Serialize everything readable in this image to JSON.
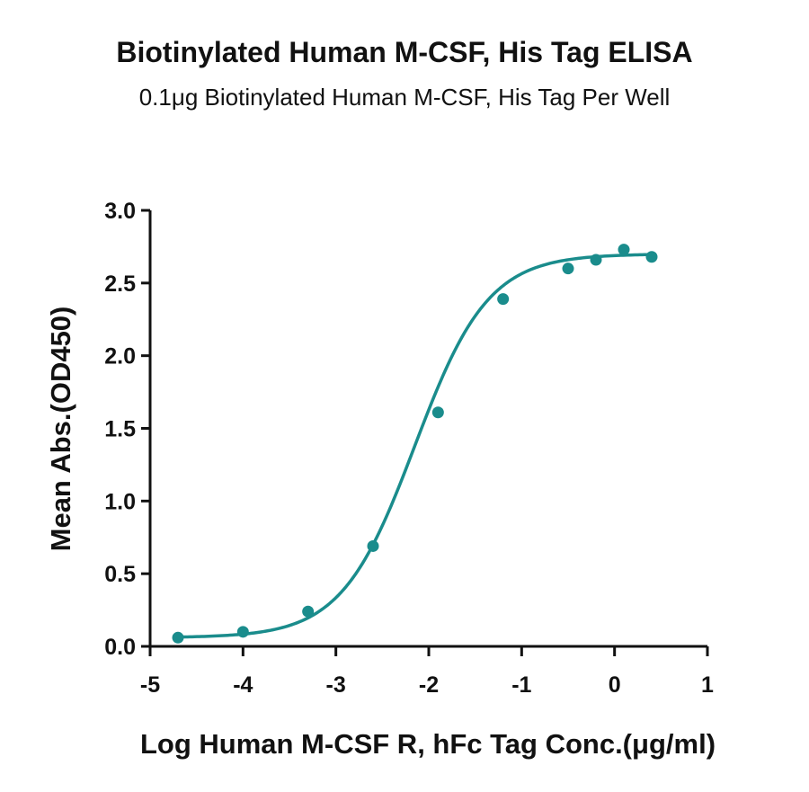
{
  "chart_data": {
    "type": "scatter",
    "title": "Biotinylated Human M-CSF, His Tag ELISA",
    "subtitle": "0.1μg Biotinylated Human M-CSF, His Tag Per Well",
    "xlabel": "Log Human M-CSF R, hFc Tag Conc.(μg/ml)",
    "ylabel": "Mean Abs.(OD450)",
    "xlim": [
      -5,
      1
    ],
    "ylim": [
      0,
      3
    ],
    "x_ticks": [
      -5,
      -4,
      -3,
      -2,
      -1,
      0,
      1
    ],
    "y_ticks": [
      0.0,
      0.5,
      1.0,
      1.5,
      2.0,
      2.5,
      3.0
    ],
    "x_tick_labels": [
      "-5",
      "-4",
      "-3",
      "-2",
      "-1",
      "0",
      "1"
    ],
    "y_tick_labels": [
      "0.0",
      "0.5",
      "1.0",
      "1.5",
      "2.0",
      "2.5",
      "3.0"
    ],
    "grid": false,
    "color": "#1a8c8c",
    "series": [
      {
        "x": [
          -4.7,
          -4.0,
          -3.3,
          -2.6,
          -1.9,
          -1.2,
          -0.5,
          -0.2,
          0.1,
          0.4
        ],
        "y": [
          0.06,
          0.1,
          0.24,
          0.69,
          1.61,
          2.39,
          2.6,
          2.66,
          2.73,
          2.68
        ]
      }
    ],
    "fit_curve": {
      "model": "4PL",
      "bottom": 0.06,
      "top": 2.7,
      "log_ec50": -2.15,
      "hill_slope": 1.1
    }
  }
}
